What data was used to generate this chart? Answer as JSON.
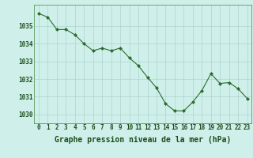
{
  "x": [
    0,
    1,
    2,
    3,
    4,
    5,
    6,
    7,
    8,
    9,
    10,
    11,
    12,
    13,
    14,
    15,
    16,
    17,
    18,
    19,
    20,
    21,
    22,
    23
  ],
  "y": [
    1035.7,
    1035.5,
    1034.8,
    1034.8,
    1034.5,
    1034.0,
    1033.6,
    1033.75,
    1033.6,
    1033.75,
    1033.2,
    1032.75,
    1032.1,
    1031.5,
    1030.6,
    1030.2,
    1030.2,
    1030.7,
    1031.35,
    1032.3,
    1031.75,
    1031.8,
    1031.45,
    1030.9
  ],
  "line_color": "#2d6a2d",
  "marker": "D",
  "markersize": 2.0,
  "linewidth": 0.8,
  "background_color": "#cff0ea",
  "grid_color": "#aad4cc",
  "title": "Graphe pression niveau de la mer (hPa)",
  "title_color": "#1a4d1a",
  "title_fontsize": 7.0,
  "ylim": [
    1029.5,
    1036.2
  ],
  "xlim": [
    -0.5,
    23.5
  ],
  "yticks": [
    1030,
    1031,
    1032,
    1033,
    1034,
    1035
  ],
  "xticks": [
    0,
    1,
    2,
    3,
    4,
    5,
    6,
    7,
    8,
    9,
    10,
    11,
    12,
    13,
    14,
    15,
    16,
    17,
    18,
    19,
    20,
    21,
    22,
    23
  ],
  "tick_fontsize": 5.5,
  "tick_color": "#1a4d1a",
  "spine_color": "#5a9a5a"
}
